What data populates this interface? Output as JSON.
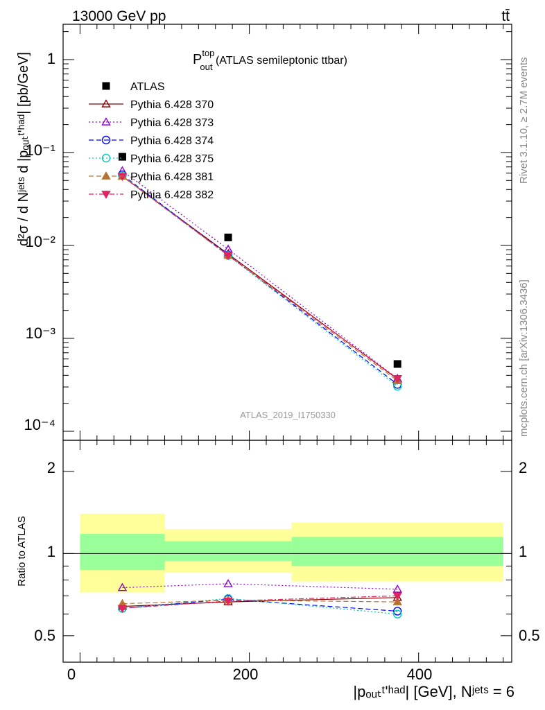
{
  "header": {
    "energy_label": "13000 GeV pp",
    "process_label": "tt̄"
  },
  "main_panel": {
    "title_main": "P",
    "title_sup": "top",
    "title_sub": "out",
    "title_rest": " (ATLAS semileptonic ttbar)",
    "ylabel": "d²σ / d Nʲᵉᵗˢ d |pₒᵤₜᵗ'ʰᵃᵈ| [pb/GeV]",
    "watermark": "ATLAS_2019_I1750330",
    "y_ticks": [
      "1",
      "10⁻¹",
      "10⁻²",
      "10⁻³",
      "10⁻⁴"
    ]
  },
  "ratio_panel": {
    "ylabel": "Ratio to ATLAS",
    "y_ticks": [
      "0.5",
      "1",
      "2"
    ]
  },
  "xaxis": {
    "ticks": [
      "0",
      "200",
      "400"
    ],
    "label": "|pₒᵤₜᵗ'ʰᵃᵈ| [GeV], Nʲᵉᵗˢ = 6"
  },
  "side_labels": {
    "rivet": "Rivet 3.1.10, ≥ 2.7M events",
    "mcplots": "mcplots.cern.ch [arXiv:1306.3436]"
  },
  "colors": {
    "band_outer": "#ffff99",
    "band_inner": "#99ff99",
    "atlas": "#000000"
  },
  "chart_data": {
    "type": "scatter",
    "title": "P_out^top (ATLAS semileptonic ttbar)",
    "xlabel": "|p_out^t,had| [GeV], N^jets = 6",
    "ylabel": "d²σ / d N^jets d |p_out^t,had| [pb/GeV]",
    "xlim": [
      -20,
      510
    ],
    "ylim": [
      8e-05,
      2.4
    ],
    "log_y": true,
    "ratio_ylabel": "Ratio to ATLAS",
    "ratio_ylim": [
      0.4,
      2.6
    ],
    "legend_position": "top-left",
    "bin_edges": [
      0,
      100,
      250,
      500
    ],
    "x": [
      50,
      175,
      375
    ],
    "atlas": {
      "name": "ATLAS",
      "values": [
        0.09,
        0.0122,
        0.00053
      ],
      "band_outer": [
        [
          0.72,
          1.4
        ],
        [
          0.85,
          1.23
        ],
        [
          0.79,
          1.3
        ]
      ],
      "band_inner": [
        [
          0.87,
          1.18
        ],
        [
          0.94,
          1.11
        ],
        [
          0.9,
          1.15
        ]
      ]
    },
    "series": [
      {
        "name": "Pythia 6.428 370",
        "color": "#8b0000",
        "dash": "",
        "marker": "tri-up-open",
        "values": [
          0.0555,
          0.0081,
          0.000365
        ],
        "ratio": [
          0.64,
          0.665,
          0.69
        ]
      },
      {
        "name": "Pythia 6.428 373",
        "color": "#9400d3",
        "dash": "2,3",
        "marker": "tri-up-open",
        "values": [
          0.0635,
          0.0091,
          0.00037
        ],
        "ratio": [
          0.75,
          0.775,
          0.74
        ]
      },
      {
        "name": "Pythia 6.428 374",
        "color": "#0000ff",
        "dash": "7,4",
        "marker": "circle-open",
        "values": [
          0.0575,
          0.0079,
          0.00032
        ],
        "ratio": [
          0.63,
          0.68,
          0.615
        ]
      },
      {
        "name": "Pythia 6.428 375",
        "color": "#00ccbb",
        "dash": "2,3",
        "marker": "circle-open",
        "values": [
          0.0565,
          0.0078,
          0.000305
        ],
        "ratio": [
          0.63,
          0.685,
          0.6
        ]
      },
      {
        "name": "Pythia 6.428 381",
        "color": "#b87333",
        "dash": "7,4",
        "marker": "tri-up-filled",
        "values": [
          0.0555,
          0.0078,
          0.00035
        ],
        "ratio": [
          0.655,
          0.675,
          0.665
        ]
      },
      {
        "name": "Pythia 6.428 382",
        "color": "#e0245e",
        "dash": "7,3,2,3",
        "marker": "tri-down-filled",
        "values": [
          0.0555,
          0.0078,
          0.00037
        ],
        "ratio": [
          0.63,
          0.67,
          0.7
        ]
      }
    ]
  }
}
